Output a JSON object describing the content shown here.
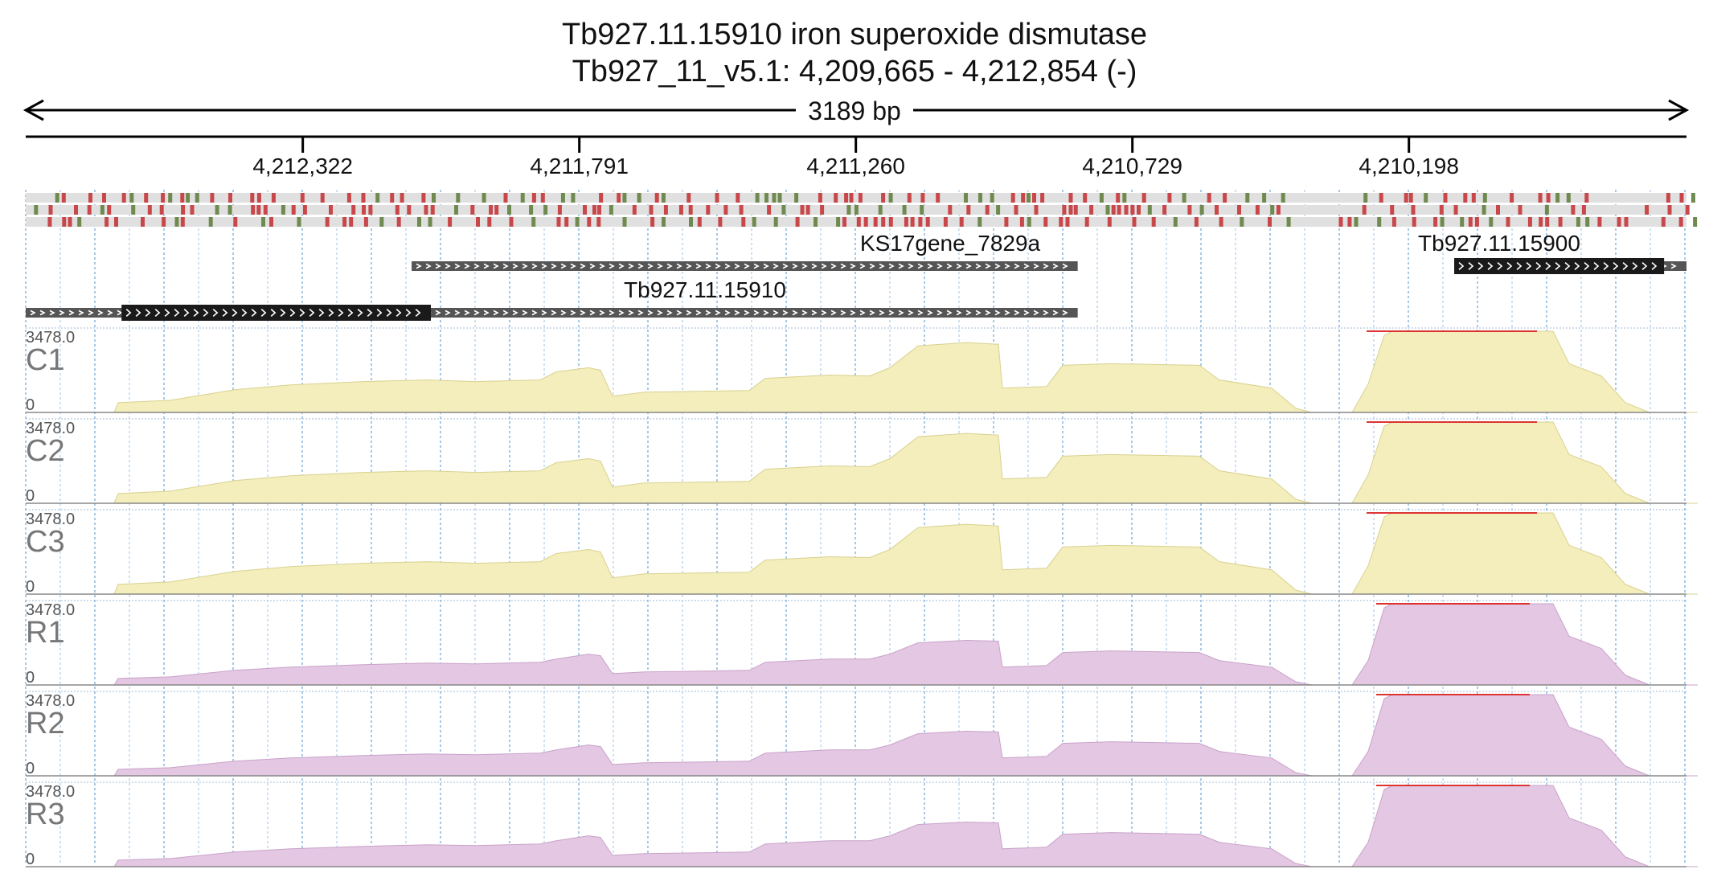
{
  "header": {
    "title": "Tb927.11.15910  iron superoxide dismutase",
    "subtitle": "Tb927_11_v5.1: 4,209,665 - 4,212,854 (-)",
    "span_label": "3189 bp"
  },
  "coordinates": {
    "start": 4209665,
    "end": 4212854,
    "strand": "-",
    "tick_labels": [
      "4,212,322",
      "4,211,791",
      "4,211,260",
      "4,210,729",
      "4,210,198"
    ]
  },
  "genes": [
    {
      "id": "KS17gene_7829a",
      "label": "KS17gene_7829a",
      "start": 4212113,
      "end": 4210834,
      "cds": null
    },
    {
      "id": "Tb927.11.15900",
      "label": "Tb927.11.15900",
      "start": 4210111,
      "end": 4209625,
      "cds": [
        4210111,
        4209708
      ]
    },
    {
      "id": "Tb927.11.15910",
      "label": "Tb927.11.15910",
      "start": 4212858,
      "end": 4210834,
      "cds": [
        4212670,
        4212076
      ]
    }
  ],
  "colors": {
    "control": "#f3eebb",
    "rnai": "#e3c7e3",
    "clip": "#dd3333",
    "gene_dark": "#1a1a1a",
    "gene_utr": "#555555",
    "variant_red": "#c8474a",
    "variant_green": "#6f8a4e"
  },
  "tracks": [
    {
      "name": "C1",
      "group": "control",
      "max_label": "3478.0",
      "min_label": "0"
    },
    {
      "name": "C2",
      "group": "control",
      "max_label": "3478.0",
      "min_label": "0"
    },
    {
      "name": "C3",
      "group": "control",
      "max_label": "3478.0",
      "min_label": "0"
    },
    {
      "name": "R1",
      "group": "rnai",
      "max_label": "3478.0",
      "min_label": "0"
    },
    {
      "name": "R2",
      "group": "rnai",
      "max_label": "3478.0",
      "min_label": "0"
    },
    {
      "name": "R3",
      "group": "rnai",
      "max_label": "3478.0",
      "min_label": "0"
    }
  ],
  "coverage_profiles": {
    "control": [
      [
        0,
        0
      ],
      [
        110,
        0
      ],
      [
        115,
        0.12
      ],
      [
        180,
        0.15
      ],
      [
        260,
        0.28
      ],
      [
        330,
        0.34
      ],
      [
        420,
        0.38
      ],
      [
        500,
        0.4
      ],
      [
        560,
        0.38
      ],
      [
        640,
        0.4
      ],
      [
        660,
        0.5
      ],
      [
        700,
        0.55
      ],
      [
        715,
        0.52
      ],
      [
        730,
        0.2
      ],
      [
        770,
        0.25
      ],
      [
        900,
        0.27
      ],
      [
        920,
        0.42
      ],
      [
        1000,
        0.46
      ],
      [
        1050,
        0.45
      ],
      [
        1075,
        0.55
      ],
      [
        1110,
        0.82
      ],
      [
        1170,
        0.86
      ],
      [
        1210,
        0.84
      ],
      [
        1215,
        0.3
      ],
      [
        1270,
        0.32
      ],
      [
        1290,
        0.58
      ],
      [
        1350,
        0.6
      ],
      [
        1460,
        0.58
      ],
      [
        1485,
        0.4
      ],
      [
        1550,
        0.3
      ],
      [
        1580,
        0.05
      ],
      [
        1600,
        0
      ],
      [
        1650,
        0
      ],
      [
        1670,
        0.35
      ],
      [
        1690,
        0.95
      ],
      [
        1700,
        1.0
      ],
      [
        1900,
        1.0
      ],
      [
        1920,
        0.6
      ],
      [
        1960,
        0.45
      ],
      [
        1990,
        0.12
      ],
      [
        2020,
        0
      ],
      [
        2080,
        0
      ]
    ],
    "rnai": [
      [
        0,
        0
      ],
      [
        110,
        0
      ],
      [
        115,
        0.08
      ],
      [
        180,
        0.1
      ],
      [
        260,
        0.18
      ],
      [
        330,
        0.22
      ],
      [
        420,
        0.25
      ],
      [
        500,
        0.27
      ],
      [
        560,
        0.26
      ],
      [
        640,
        0.28
      ],
      [
        660,
        0.32
      ],
      [
        700,
        0.38
      ],
      [
        715,
        0.36
      ],
      [
        730,
        0.14
      ],
      [
        770,
        0.16
      ],
      [
        900,
        0.18
      ],
      [
        920,
        0.28
      ],
      [
        1000,
        0.32
      ],
      [
        1050,
        0.32
      ],
      [
        1075,
        0.38
      ],
      [
        1110,
        0.52
      ],
      [
        1170,
        0.55
      ],
      [
        1210,
        0.54
      ],
      [
        1215,
        0.22
      ],
      [
        1270,
        0.24
      ],
      [
        1290,
        0.4
      ],
      [
        1350,
        0.42
      ],
      [
        1460,
        0.4
      ],
      [
        1485,
        0.3
      ],
      [
        1550,
        0.22
      ],
      [
        1580,
        0.04
      ],
      [
        1600,
        0
      ],
      [
        1650,
        0
      ],
      [
        1670,
        0.3
      ],
      [
        1690,
        0.95
      ],
      [
        1700,
        1.0
      ],
      [
        1900,
        1.0
      ],
      [
        1920,
        0.6
      ],
      [
        1960,
        0.45
      ],
      [
        1990,
        0.12
      ],
      [
        2020,
        0
      ],
      [
        2080,
        0
      ]
    ]
  }
}
